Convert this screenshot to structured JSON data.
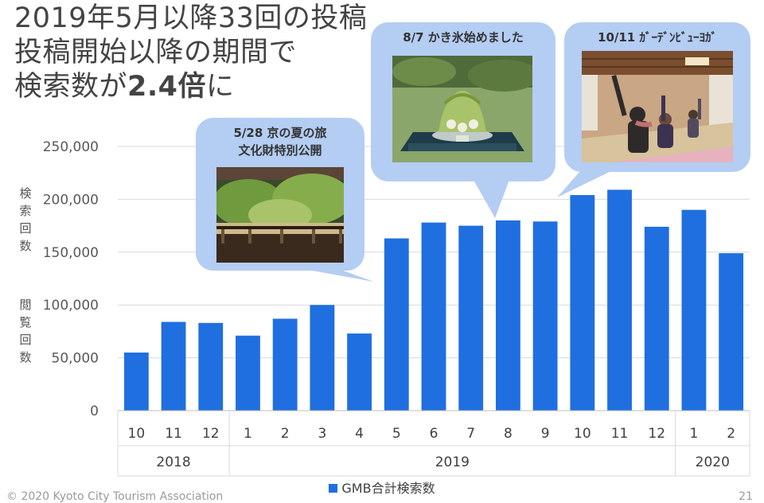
{
  "title": {
    "line1": "2019年5月以降33回の投稿",
    "line2": "投稿開始以降の期間で",
    "line3_prefix": "検索数が",
    "line3_emph": "2.4倍",
    "line3_suffix": "に"
  },
  "ylabel_top": [
    "検",
    "索",
    "回",
    "数"
  ],
  "ylabel_bottom": [
    "閲",
    "覧",
    "回",
    "数"
  ],
  "callouts": [
    {
      "line1": "5/28 京の夏の旅",
      "line2": "文化財特別公開",
      "photo": "garden-veranda-photo"
    },
    {
      "line1": "8/7 かき氷始めました",
      "photo": "shaved-ice-photo"
    },
    {
      "line1": "10/11 ｶﾞｰﾃﾞﾝﾋﾞｭｰﾖｶﾞ",
      "photo": "yoga-class-photo"
    }
  ],
  "colors": {
    "bar": "#1f6fe0",
    "callout": "#b4cdf3",
    "grid": "#d9d9d9"
  },
  "chart_data": {
    "type": "bar",
    "categories": [
      "10",
      "11",
      "12",
      "1",
      "2",
      "3",
      "4",
      "5",
      "6",
      "7",
      "8",
      "9",
      "10",
      "11",
      "12",
      "1",
      "2"
    ],
    "year_groups": [
      {
        "label": "2018",
        "count": 3
      },
      {
        "label": "2019",
        "count": 12
      },
      {
        "label": "2020",
        "count": 2
      }
    ],
    "series": [
      {
        "name": "GMB合計検索数",
        "values": [
          55000,
          84000,
          83000,
          71000,
          87000,
          100000,
          73000,
          163000,
          178000,
          175000,
          180000,
          179000,
          204000,
          209000,
          174000,
          190000,
          149000
        ]
      }
    ],
    "ylim": [
      0,
      250000
    ],
    "yticks": [
      0,
      50000,
      100000,
      150000,
      200000,
      250000
    ],
    "ytick_labels": [
      "0",
      "50,000",
      "100,000",
      "150,000",
      "200,000",
      "250,000"
    ],
    "grid": true,
    "legend": "bottom"
  },
  "footer": "© 2020 Kyoto City Tourism Association",
  "page_number": "21"
}
